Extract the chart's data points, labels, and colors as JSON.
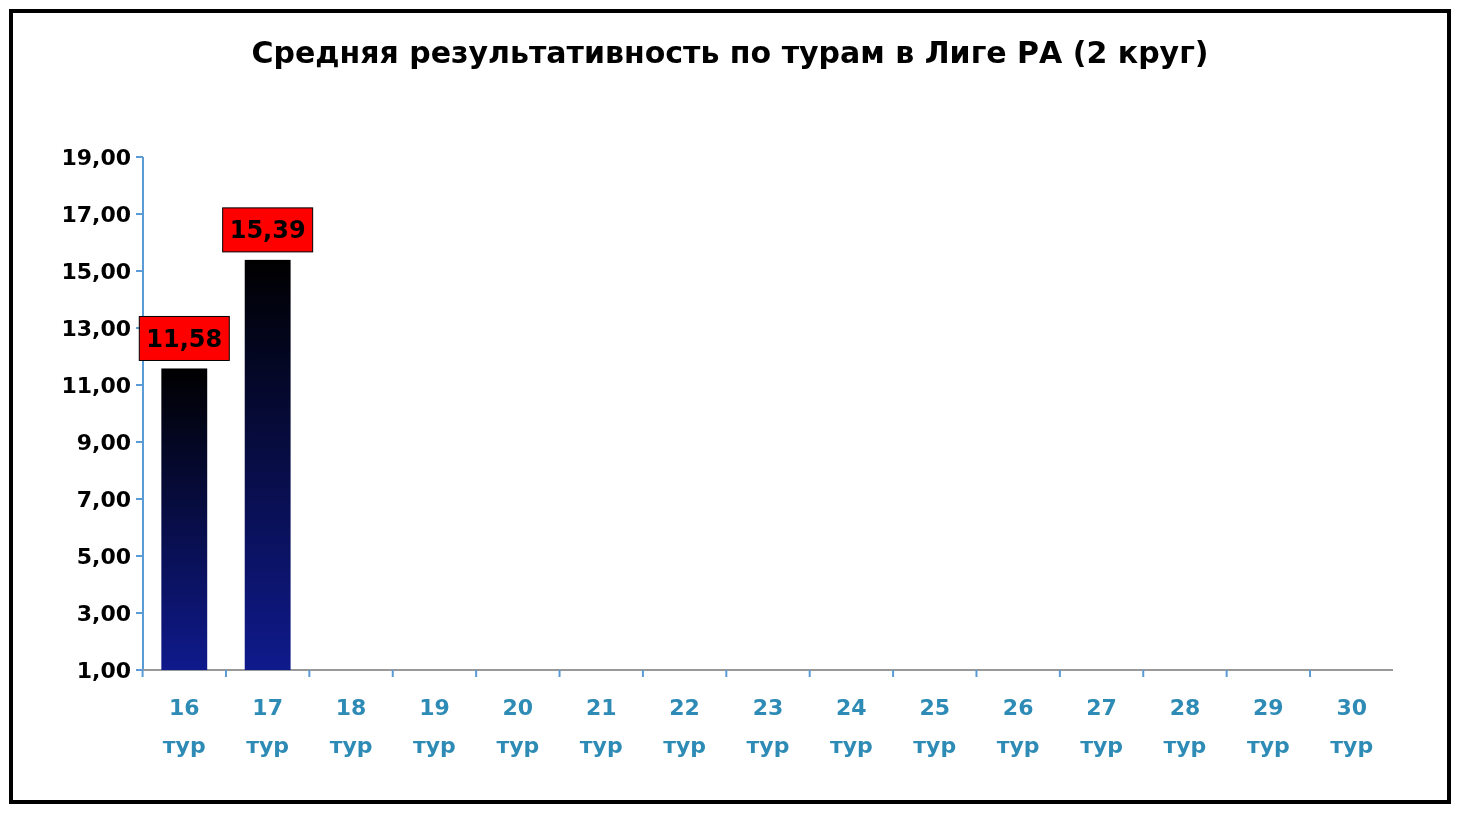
{
  "chart_data": {
    "type": "bar",
    "title": "Средняя результативность по турам в Лиге РА (2 круг)",
    "categories": [
      "16 тур",
      "17 тур",
      "18 тур",
      "19 тур",
      "20 тур",
      "21 тур",
      "22 тур",
      "23 тур",
      "24 тур",
      "25 тур",
      "26 тур",
      "27 тур",
      "28 тур",
      "29 тур",
      "30 тур"
    ],
    "values": [
      11.58,
      15.39,
      null,
      null,
      null,
      null,
      null,
      null,
      null,
      null,
      null,
      null,
      null,
      null,
      null
    ],
    "value_labels": [
      "11,58",
      "15,39",
      null,
      null,
      null,
      null,
      null,
      null,
      null,
      null,
      null,
      null,
      null,
      null,
      null
    ],
    "color": "#0f1a8c",
    "ylim": [
      1,
      19
    ],
    "yticks": [
      {
        "value": 1,
        "label": "1,00"
      },
      {
        "value": 3,
        "label": "3,00"
      },
      {
        "value": 5,
        "label": "5,00"
      },
      {
        "value": 7,
        "label": "7,00"
      },
      {
        "value": 9,
        "label": "9,00"
      },
      {
        "value": 11,
        "label": "11,00"
      },
      {
        "value": 13,
        "label": "13,00"
      },
      {
        "value": 15,
        "label": "15,00"
      },
      {
        "value": 17,
        "label": "17,00"
      },
      {
        "value": 19,
        "label": "19,00"
      }
    ],
    "grid": false
  }
}
